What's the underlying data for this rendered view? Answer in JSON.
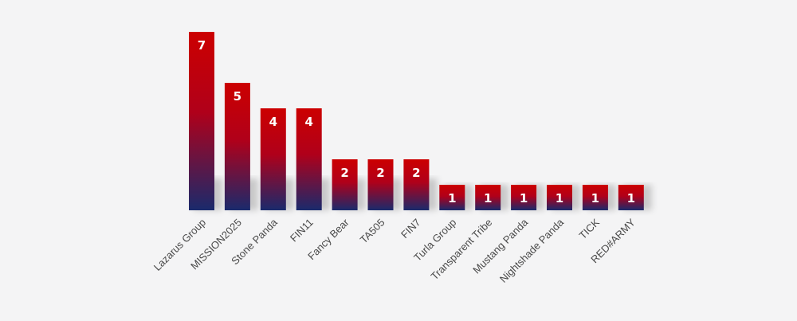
{
  "chart_data": {
    "type": "bar",
    "categories": [
      "Lazarus Group",
      "MISSION2025",
      "Stone Panda",
      "FIN11",
      "Fancy Bear",
      "TA505",
      "FIN7",
      "Turla Group",
      "Transparent Tribe",
      "Mustang Panda",
      "Nightshade Panda",
      "TICK",
      "RED#ARMY"
    ],
    "values": [
      7,
      5,
      4,
      4,
      2,
      2,
      2,
      1,
      1,
      1,
      1,
      1,
      1
    ],
    "title": "",
    "xlabel": "",
    "ylabel": "",
    "ylim": [
      0,
      7
    ],
    "grid": false,
    "data_labels": true,
    "colors": {
      "bar_top": "#cc0000",
      "bar_bottom": "#1a2a6c",
      "value_text": "#ffffff",
      "category_text": "#4a4a4a",
      "background": "#f4f4f5"
    }
  }
}
